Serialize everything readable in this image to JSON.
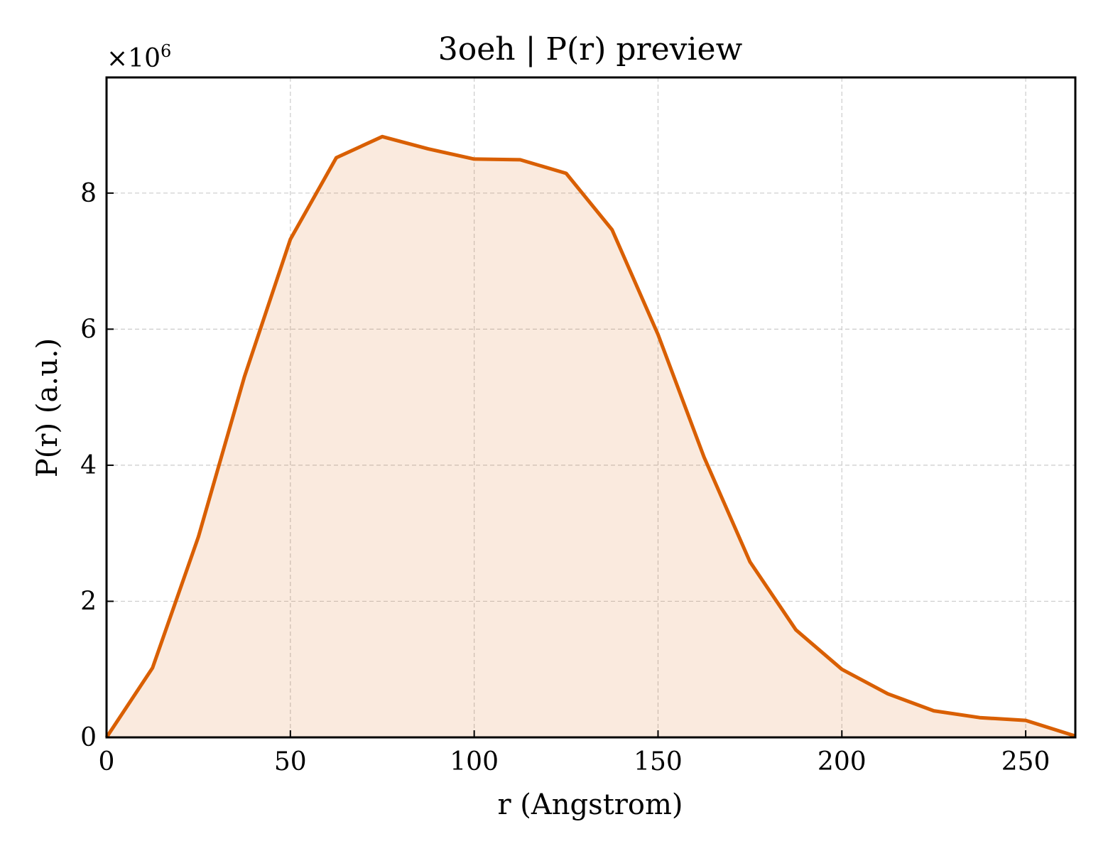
{
  "chart_data": {
    "type": "area",
    "title": "3oeh | P(r) preview",
    "xlabel": "r (Angstrom)",
    "ylabel": "P(r) (a.u.)",
    "y_multiplier_label": "×10",
    "y_multiplier_exponent": "6",
    "xlim": [
      0,
      263.5
    ],
    "ylim": [
      0,
      9.7
    ],
    "grid": true,
    "x_ticks": [
      0,
      50,
      100,
      150,
      200,
      250
    ],
    "y_ticks": [
      0,
      2,
      4,
      6,
      8
    ],
    "line_color": "#d95f02",
    "fill_color": "#d95f02",
    "fill_opacity": 0.13,
    "series": [
      {
        "x": [
          0,
          12.5,
          25,
          37.5,
          50,
          62.5,
          75,
          87.5,
          100,
          112.5,
          125,
          137.5,
          150,
          162.5,
          175,
          187.5,
          200,
          212.5,
          225,
          237.5,
          250,
          263.5
        ],
        "values": [
          0,
          1.02,
          2.95,
          5.3,
          7.32,
          8.52,
          8.83,
          8.65,
          8.5,
          8.49,
          8.29,
          7.46,
          5.92,
          4.12,
          2.58,
          1.58,
          1.0,
          0.64,
          0.39,
          0.29,
          0.25,
          0.02
        ]
      }
    ]
  }
}
